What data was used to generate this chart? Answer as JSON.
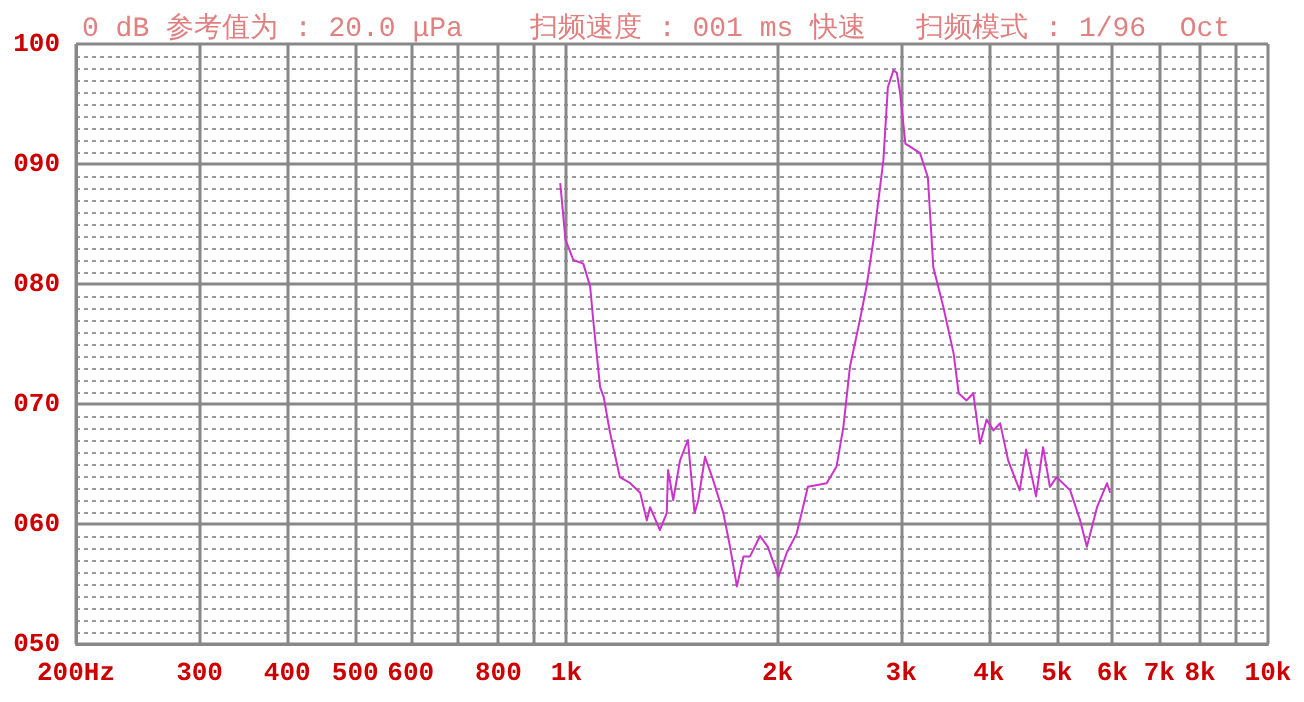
{
  "chart_data": {
    "type": "line",
    "title": "0 dB 参考值为 : 20.0 μPa    扫频速度 : 001 ms 快速   扫频模式 : 1/96  Oct",
    "x": [
      980,
      997,
      1023,
      1057,
      1081,
      1092,
      1117,
      1130,
      1154,
      1192,
      1233,
      1274,
      1302,
      1316,
      1359,
      1390,
      1396,
      1420,
      1452,
      1490,
      1523,
      1542,
      1576,
      1618,
      1674,
      1711,
      1750,
      1788,
      1827,
      1888,
      1937,
      2006,
      2061,
      2129,
      2209,
      2349,
      2427,
      2482,
      2536,
      2620,
      2678,
      2740,
      2830,
      2872,
      2925,
      2958,
      2990,
      3042,
      3192,
      3275,
      3334,
      3445,
      3564,
      3623,
      3718,
      3801,
      3887,
      3972,
      4062,
      4152,
      4262,
      4427,
      4521,
      4671,
      4780,
      4888,
      4999,
      5225,
      5398,
      5519,
      5706,
      5896,
      5957
    ],
    "series": [
      {
        "color": "#cc33cc",
        "values": [
          88.4,
          83.7,
          82,
          81.7,
          79.8,
          77,
          71.4,
          70.6,
          67.6,
          63.9,
          63.4,
          62.6,
          60.3,
          61.4,
          59.5,
          60.9,
          64.5,
          62,
          65.3,
          67,
          60.9,
          62,
          65.6,
          63.7,
          60.9,
          58.1,
          54.8,
          57.3,
          57.3,
          59,
          58.1,
          55.6,
          57.6,
          59.2,
          63.1,
          63.4,
          64.8,
          68.1,
          73.1,
          77,
          79.8,
          83.7,
          90.3,
          96.4,
          97.8,
          97.6,
          95.9,
          91.7,
          90.9,
          88.9,
          81.4,
          78.1,
          74.2,
          70.9,
          70.3,
          70.9,
          66.7,
          68.7,
          67.8,
          68.4,
          65.3,
          62.8,
          66.2,
          62.3,
          66.4,
          63.1,
          63.9,
          62.8,
          60.3,
          58.1,
          61.4,
          63.4,
          62.6
        ]
      }
    ],
    "log": "x",
    "xlim": [
      200,
      10000
    ],
    "xticks": [
      {
        "value": 200,
        "label": "200Hz"
      },
      300,
      400,
      500,
      600,
      {
        "value": 700,
        "label": null
      },
      800,
      {
        "value": 900,
        "label": null
      },
      {
        "value": 1000,
        "label": "1k"
      },
      {
        "value": 2000,
        "label": "2k"
      },
      {
        "value": 3000,
        "label": "3k"
      },
      {
        "value": 4000,
        "label": "4k"
      },
      {
        "value": 5000,
        "label": "5k"
      },
      {
        "value": 6000,
        "label": "6k"
      },
      {
        "value": 7000,
        "label": "7k"
      },
      {
        "value": 8000,
        "label": "8k"
      },
      {
        "value": 9000,
        "label": null
      },
      {
        "value": 10000,
        "label": "10k"
      }
    ],
    "ylim": [
      50,
      100
    ],
    "yticks": [
      {
        "value": 50,
        "label": "050"
      },
      {
        "value": 60,
        "label": "060"
      },
      {
        "value": 70,
        "label": "070"
      },
      {
        "value": 80,
        "label": "080"
      },
      {
        "value": 90,
        "label": "090"
      },
      {
        "value": 100,
        "label": "100"
      }
    ],
    "grid": true,
    "marker": "none",
    "line_style": "solid"
  }
}
